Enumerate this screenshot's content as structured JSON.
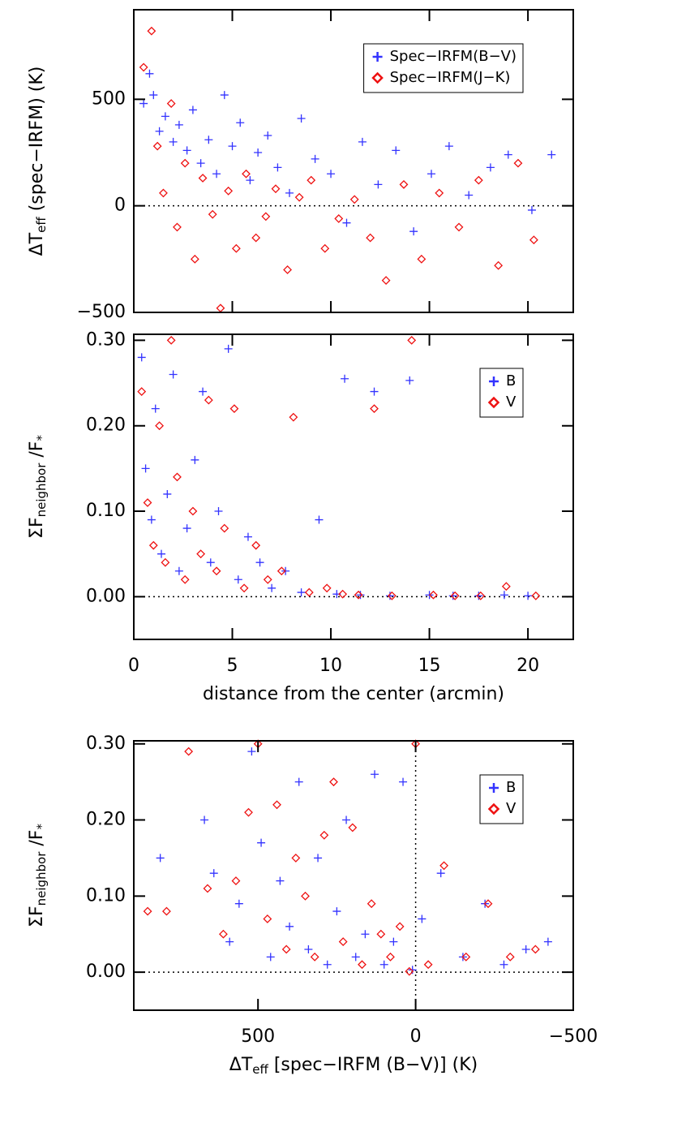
{
  "chart_data": [
    {
      "type": "scatter",
      "ylabel": [
        "ΔT",
        "eff",
        " (spec−IRFM) (K)"
      ],
      "xlim": [
        0,
        22.3
      ],
      "xticks": [
        0,
        5,
        10,
        15,
        20
      ],
      "xtick_labels": false,
      "ylim": [
        -500,
        920
      ],
      "yticks": [
        {
          "value": -500,
          "label": "−500"
        },
        0,
        500
      ],
      "hlines": [
        0
      ],
      "legend": "upper right",
      "series": [
        {
          "name": "Spec−IRFM(B−V)",
          "color": "#3333ff",
          "marker": "plus",
          "x": [
            0.5,
            0.8,
            1.0,
            1.3,
            1.6,
            2.0,
            2.3,
            2.7,
            3.0,
            3.4,
            3.8,
            4.2,
            4.6,
            5.0,
            5.4,
            5.9,
            6.3,
            6.8,
            7.3,
            7.9,
            8.5,
            9.2,
            10.0,
            10.8,
            11.6,
            12.4,
            13.3,
            14.2,
            15.1,
            16.0,
            17.0,
            18.1,
            19.0,
            20.2,
            21.2
          ],
          "values": [
            480,
            620,
            520,
            350,
            420,
            300,
            380,
            260,
            450,
            200,
            310,
            150,
            520,
            280,
            390,
            120,
            250,
            330,
            180,
            60,
            410,
            220,
            150,
            -80,
            300,
            100,
            260,
            -120,
            150,
            280,
            50,
            180,
            240,
            -20,
            240
          ]
        },
        {
          "name": "Spec−IRFM(J−K)",
          "color": "#ee1111",
          "marker": "diamond",
          "x": [
            0.5,
            0.9,
            1.2,
            1.5,
            1.9,
            2.2,
            2.6,
            3.1,
            3.5,
            4.0,
            4.4,
            4.8,
            5.2,
            5.7,
            6.2,
            6.7,
            7.2,
            7.8,
            8.4,
            9.0,
            9.7,
            10.4,
            11.2,
            12.0,
            12.8,
            13.7,
            14.6,
            15.5,
            16.5,
            17.5,
            18.5,
            19.5,
            20.3
          ],
          "values": [
            650,
            820,
            280,
            60,
            480,
            -100,
            200,
            -250,
            130,
            -40,
            -480,
            70,
            -200,
            150,
            -150,
            -50,
            80,
            -300,
            40,
            120,
            -200,
            -60,
            30,
            -150,
            -350,
            100,
            -250,
            60,
            -100,
            120,
            -280,
            200,
            -160
          ]
        }
      ]
    },
    {
      "type": "scatter",
      "ylabel": [
        "ΣF",
        "neighbor",
        " /F",
        "*"
      ],
      "xlabel": [
        "distance from the center (arcmin)"
      ],
      "xlim": [
        0,
        22.3
      ],
      "xticks": [
        0,
        5,
        10,
        15,
        20
      ],
      "xtick_labels": true,
      "ylim": [
        -0.05,
        0.307
      ],
      "yticks": [
        {
          "value": 0,
          "label": "0.00"
        },
        {
          "value": 0.1,
          "label": "0.10"
        },
        {
          "value": 0.2,
          "label": "0.20"
        },
        {
          "value": 0.3,
          "label": "0.30"
        }
      ],
      "hlines": [
        0
      ],
      "legend": "upper right",
      "series": [
        {
          "name": "B",
          "color": "#3333ff",
          "marker": "plus",
          "x": [
            0.4,
            0.6,
            0.9,
            1.1,
            1.4,
            1.7,
            2.0,
            2.3,
            2.7,
            3.1,
            3.5,
            3.9,
            4.3,
            4.8,
            5.3,
            5.8,
            6.4,
            7.0,
            7.7,
            8.5,
            9.4,
            10.3,
            10.7,
            11.5,
            12.2,
            13.0,
            14.0,
            15.0,
            16.2,
            17.5,
            18.8,
            20.0
          ],
          "values": [
            0.28,
            0.15,
            0.09,
            0.22,
            0.05,
            0.12,
            0.26,
            0.03,
            0.08,
            0.16,
            0.24,
            0.04,
            0.1,
            0.29,
            0.02,
            0.07,
            0.04,
            0.01,
            0.03,
            0.005,
            0.09,
            0.003,
            0.255,
            0.002,
            0.24,
            0.001,
            0.253,
            0.002,
            0.001,
            0.001,
            0.002,
            0.001
          ]
        },
        {
          "name": "V",
          "color": "#ee1111",
          "marker": "diamond",
          "x": [
            0.4,
            0.7,
            1.0,
            1.3,
            1.6,
            1.9,
            2.2,
            2.6,
            3.0,
            3.4,
            3.8,
            4.2,
            4.6,
            5.1,
            5.6,
            6.2,
            6.8,
            7.5,
            8.1,
            8.9,
            9.8,
            10.6,
            11.4,
            12.2,
            13.1,
            14.1,
            15.2,
            16.3,
            17.6,
            18.9,
            20.4
          ],
          "values": [
            0.24,
            0.11,
            0.06,
            0.2,
            0.04,
            0.3,
            0.14,
            0.02,
            0.1,
            0.05,
            0.23,
            0.03,
            0.08,
            0.22,
            0.01,
            0.06,
            0.02,
            0.03,
            0.21,
            0.005,
            0.01,
            0.003,
            0.002,
            0.22,
            0.001,
            0.3,
            0.002,
            0.001,
            0.001,
            0.012,
            0.001
          ]
        }
      ]
    },
    {
      "type": "scatter",
      "ylabel": [
        "ΣF",
        "neighbor",
        " /F",
        "*"
      ],
      "xlabel": [
        "ΔT",
        "eff",
        " [spec−IRFM (B−V)] (K)"
      ],
      "xlim": [
        894,
        -500
      ],
      "xticks": [
        500,
        0,
        {
          "value": -500,
          "label": "−500"
        }
      ],
      "xtick_labels": true,
      "ylim": [
        -0.05,
        0.304
      ],
      "yticks": [
        {
          "value": 0,
          "label": "0.00"
        },
        {
          "value": 0.1,
          "label": "0.10"
        },
        {
          "value": 0.2,
          "label": "0.20"
        },
        {
          "value": 0.3,
          "label": "0.30"
        }
      ],
      "hlines": [
        0
      ],
      "vlines": [
        0
      ],
      "legend": "upper right",
      "series": [
        {
          "name": "B",
          "color": "#3333ff",
          "marker": "plus",
          "x": [
            810,
            670,
            640,
            590,
            560,
            520,
            490,
            460,
            430,
            400,
            370,
            340,
            310,
            280,
            250,
            220,
            190,
            160,
            130,
            100,
            70,
            40,
            10,
            -20,
            -80,
            -150,
            -220,
            -280,
            -350,
            -420
          ],
          "values": [
            0.15,
            0.2,
            0.13,
            0.04,
            0.09,
            0.29,
            0.17,
            0.02,
            0.12,
            0.06,
            0.25,
            0.03,
            0.15,
            0.01,
            0.08,
            0.2,
            0.02,
            0.05,
            0.26,
            0.01,
            0.04,
            0.25,
            0.003,
            0.07,
            0.13,
            0.02,
            0.09,
            0.01,
            0.03,
            0.04
          ]
        },
        {
          "name": "V",
          "color": "#ee1111",
          "marker": "diamond",
          "x": [
            850,
            790,
            720,
            660,
            610,
            570,
            530,
            500,
            470,
            440,
            410,
            380,
            350,
            320,
            290,
            260,
            230,
            200,
            170,
            140,
            110,
            80,
            50,
            20,
            0,
            -40,
            -90,
            -160,
            -230,
            -300,
            -380
          ],
          "values": [
            0.08,
            0.08,
            0.29,
            0.11,
            0.05,
            0.12,
            0.21,
            0.3,
            0.07,
            0.22,
            0.03,
            0.15,
            0.1,
            0.02,
            0.18,
            0.25,
            0.04,
            0.19,
            0.01,
            0.09,
            0.05,
            0.02,
            0.06,
            0.001,
            0.3,
            0.01,
            0.14,
            0.02,
            0.09,
            0.02,
            0.03
          ]
        }
      ]
    }
  ]
}
